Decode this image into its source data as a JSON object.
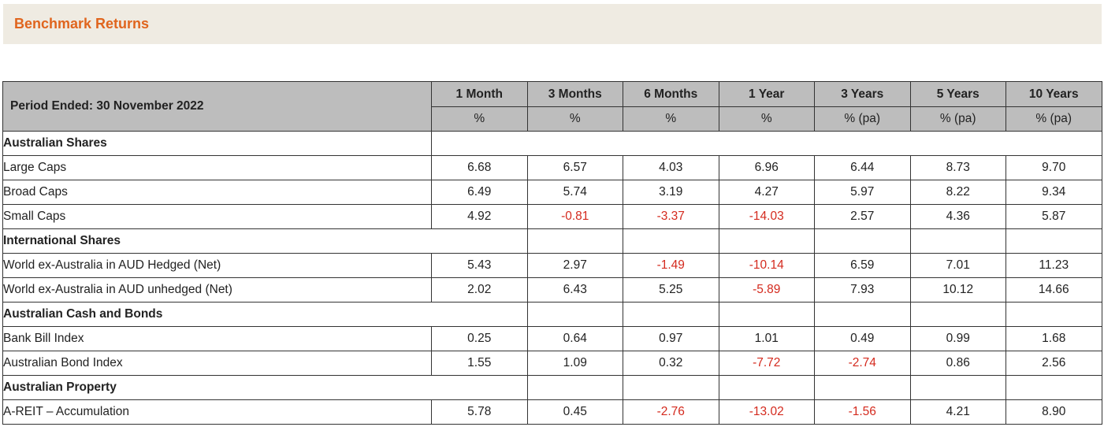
{
  "banner": {
    "title": "Benchmark Returns"
  },
  "header": {
    "period_label": "Period Ended: 30 November 2022",
    "columns": [
      {
        "label": "1 Month",
        "unit": "%"
      },
      {
        "label": "3 Months",
        "unit": "%"
      },
      {
        "label": "6 Months",
        "unit": "%"
      },
      {
        "label": "1 Year",
        "unit": "%"
      },
      {
        "label": "3 Years",
        "unit": "% (pa)"
      },
      {
        "label": "5 Years",
        "unit": "% (pa)"
      },
      {
        "label": "10 Years",
        "unit": "% (pa)"
      }
    ]
  },
  "sections": [
    {
      "title": "Australian Shares",
      "rows": [
        {
          "label": "Large Caps",
          "values": [
            "6.68",
            "6.57",
            "4.03",
            "6.96",
            "6.44",
            "8.73",
            "9.70"
          ]
        },
        {
          "label": "Broad Caps",
          "values": [
            "6.49",
            "5.74",
            "3.19",
            "4.27",
            "5.97",
            "8.22",
            "9.34"
          ]
        },
        {
          "label": "Small Caps",
          "values": [
            "4.92",
            "-0.81",
            "-3.37",
            "-14.03",
            "2.57",
            "4.36",
            "5.87"
          ]
        }
      ]
    },
    {
      "title": "International Shares",
      "rows": [
        {
          "label": "World ex-Australia in AUD Hedged (Net)",
          "values": [
            "5.43",
            "2.97",
            "-1.49",
            "-10.14",
            "6.59",
            "7.01",
            "11.23"
          ]
        },
        {
          "label": "World ex-Australia in AUD unhedged (Net)",
          "values": [
            "2.02",
            "6.43",
            "5.25",
            "-5.89",
            "7.93",
            "10.12",
            "14.66"
          ]
        }
      ]
    },
    {
      "title": "Australian Cash and Bonds",
      "rows": [
        {
          "label": "Bank Bill Index",
          "values": [
            "0.25",
            "0.64",
            "0.97",
            "1.01",
            "0.49",
            "0.99",
            "1.68"
          ]
        },
        {
          "label": "Australian Bond Index",
          "values": [
            "1.55",
            "1.09",
            "0.32",
            "-7.72",
            "-2.74",
            "0.86",
            "2.56"
          ]
        }
      ]
    },
    {
      "title": "Australian Property",
      "rows": [
        {
          "label": "A-REIT – Accumulation",
          "values": [
            "5.78",
            "0.45",
            "-2.76",
            "-13.02",
            "-1.56",
            "4.21",
            "8.90"
          ]
        }
      ]
    }
  ],
  "colors": {
    "accent": "#e0651e",
    "banner_bg": "#efebe2",
    "header_bg": "#bdbdbd",
    "negative": "#d42a1e"
  }
}
